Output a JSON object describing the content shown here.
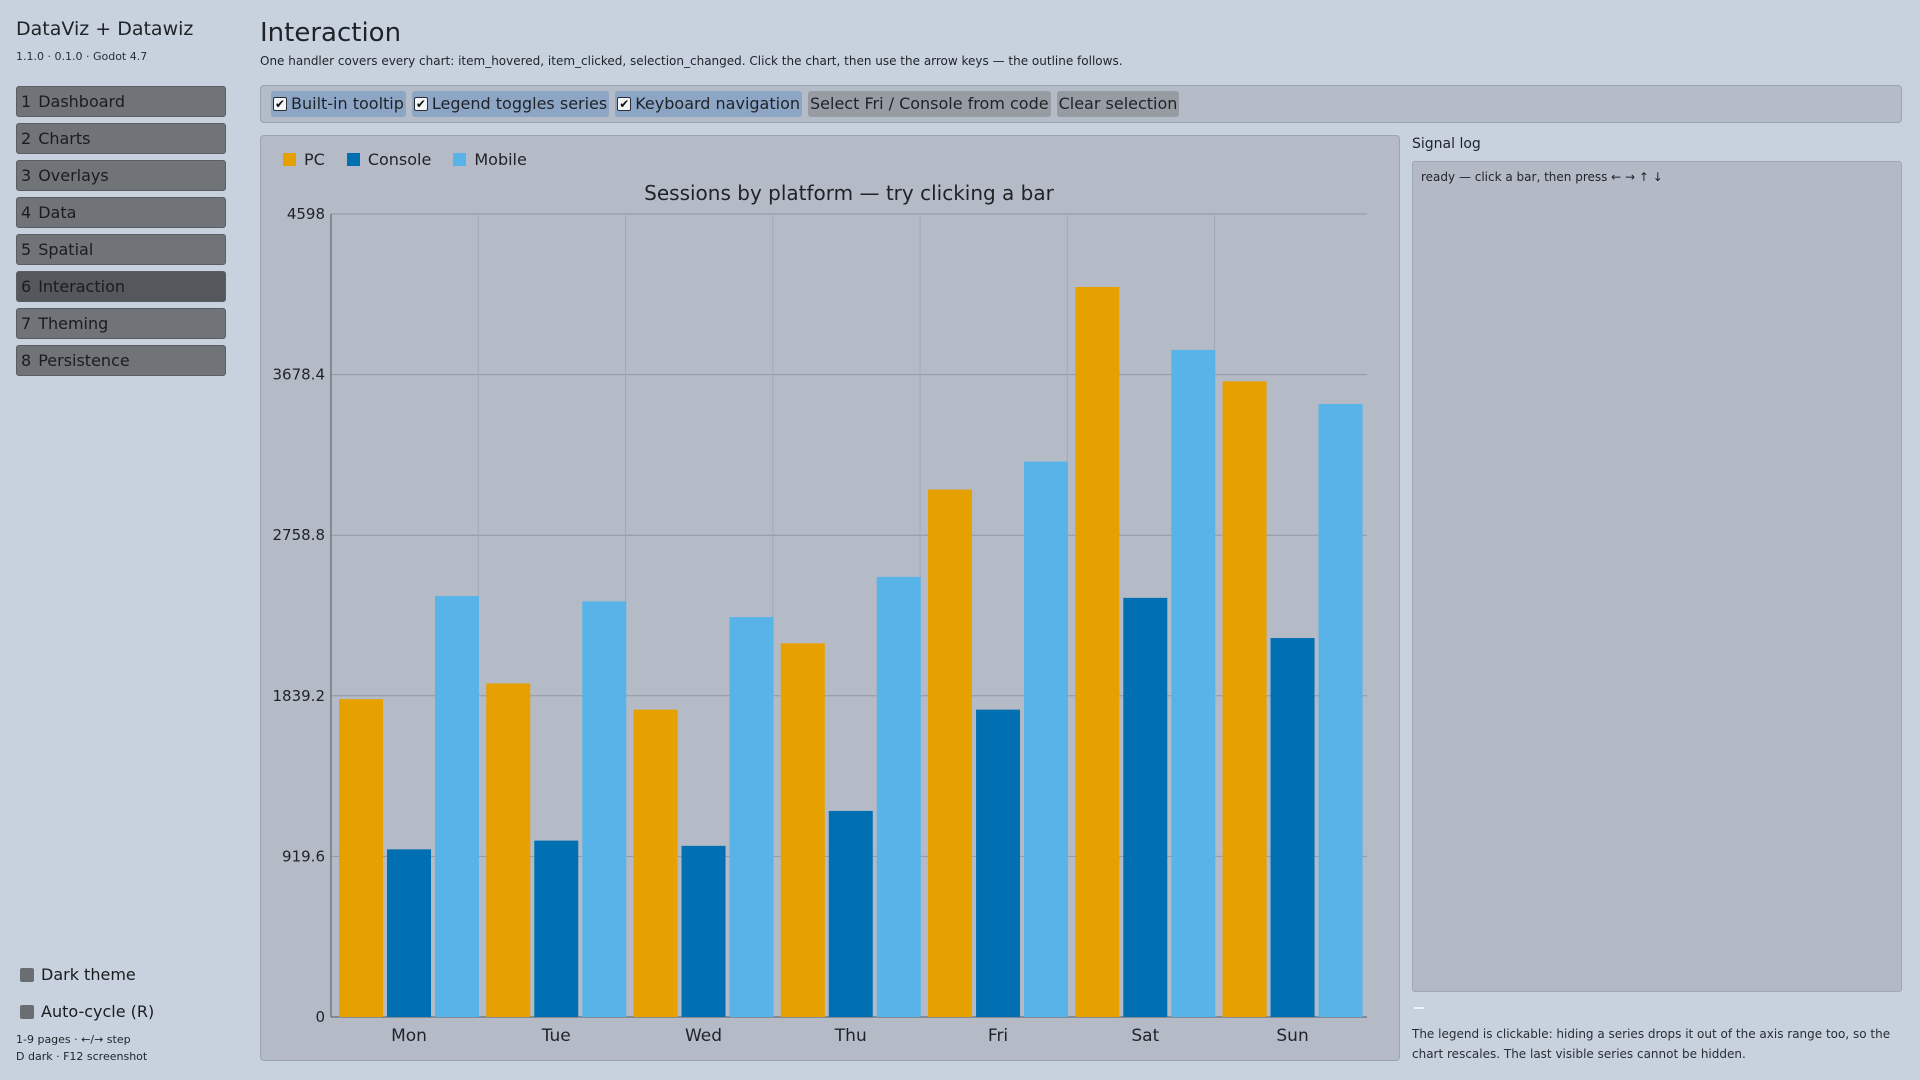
{
  "app": {
    "title": "DataViz + Datawiz",
    "version": "1.1.0 · 0.1.0 · Godot 4.7"
  },
  "sidebar": {
    "items": [
      {
        "num": "1",
        "label": "Dashboard",
        "active": false
      },
      {
        "num": "2",
        "label": "Charts",
        "active": false
      },
      {
        "num": "3",
        "label": "Overlays",
        "active": false
      },
      {
        "num": "4",
        "label": "Data",
        "active": false
      },
      {
        "num": "5",
        "label": "Spatial",
        "active": false
      },
      {
        "num": "6",
        "label": "Interaction",
        "active": true
      },
      {
        "num": "7",
        "label": "Theming",
        "active": false
      },
      {
        "num": "8",
        "label": "Persistence",
        "active": false
      }
    ],
    "dark_theme_label": "Dark theme",
    "dark_theme_checked": false,
    "auto_cycle_label": "Auto-cycle (R)",
    "auto_cycle_checked": false,
    "help_line_1": "1-9 pages · ←/→ step",
    "help_line_2": "D dark · F12 screenshot"
  },
  "page": {
    "title": "Interaction",
    "subtitle": "One handler covers every chart: item_hovered, item_clicked, selection_changed. Click the chart, then use the arrow keys — the outline follows."
  },
  "toolbar": {
    "builtin_tooltip_label": "Built-in tooltip",
    "builtin_tooltip_checked": true,
    "legend_toggles_label": "Legend toggles series",
    "legend_toggles_checked": true,
    "keyboard_nav_label": "Keyboard navigation",
    "keyboard_nav_checked": true,
    "select_code_label": "Select Fri / Console from code",
    "clear_selection_label": "Clear selection"
  },
  "chart_data": {
    "type": "bar",
    "title": "Sessions by platform — try clicking a bar",
    "xlabel": "",
    "ylabel": "",
    "categories": [
      "Mon",
      "Tue",
      "Wed",
      "Thu",
      "Fri",
      "Sat",
      "Sun"
    ],
    "y_ticks": [
      "0",
      "919.6",
      "1839.2",
      "2758.8",
      "3678.4",
      "4598"
    ],
    "ylim": [
      0,
      4598
    ],
    "grid": true,
    "legend_position": "top-left",
    "series": [
      {
        "name": "PC",
        "color": "#e6a000",
        "values": [
          1820,
          1910,
          1760,
          2140,
          3020,
          4180,
          3640
        ]
      },
      {
        "name": "Console",
        "color": "#0070b2",
        "values": [
          960,
          1010,
          980,
          1180,
          1760,
          2400,
          2170
        ]
      },
      {
        "name": "Mobile",
        "color": "#58b4e8",
        "values": [
          2410,
          2380,
          2290,
          2520,
          3180,
          3820,
          3510
        ]
      }
    ]
  },
  "signal_log": {
    "title": "Signal log",
    "lines": [
      "ready — click a bar, then press ← → ↑ ↓"
    ],
    "note": "The legend is clickable: hiding a series drops it out of the axis range too, so the chart rescales. The last visible series cannot be hidden."
  },
  "colors": {
    "background": "#c8d2de",
    "panel": "#b4bac6",
    "nav_active": "#54575b",
    "nav_inactive": "#707478"
  }
}
